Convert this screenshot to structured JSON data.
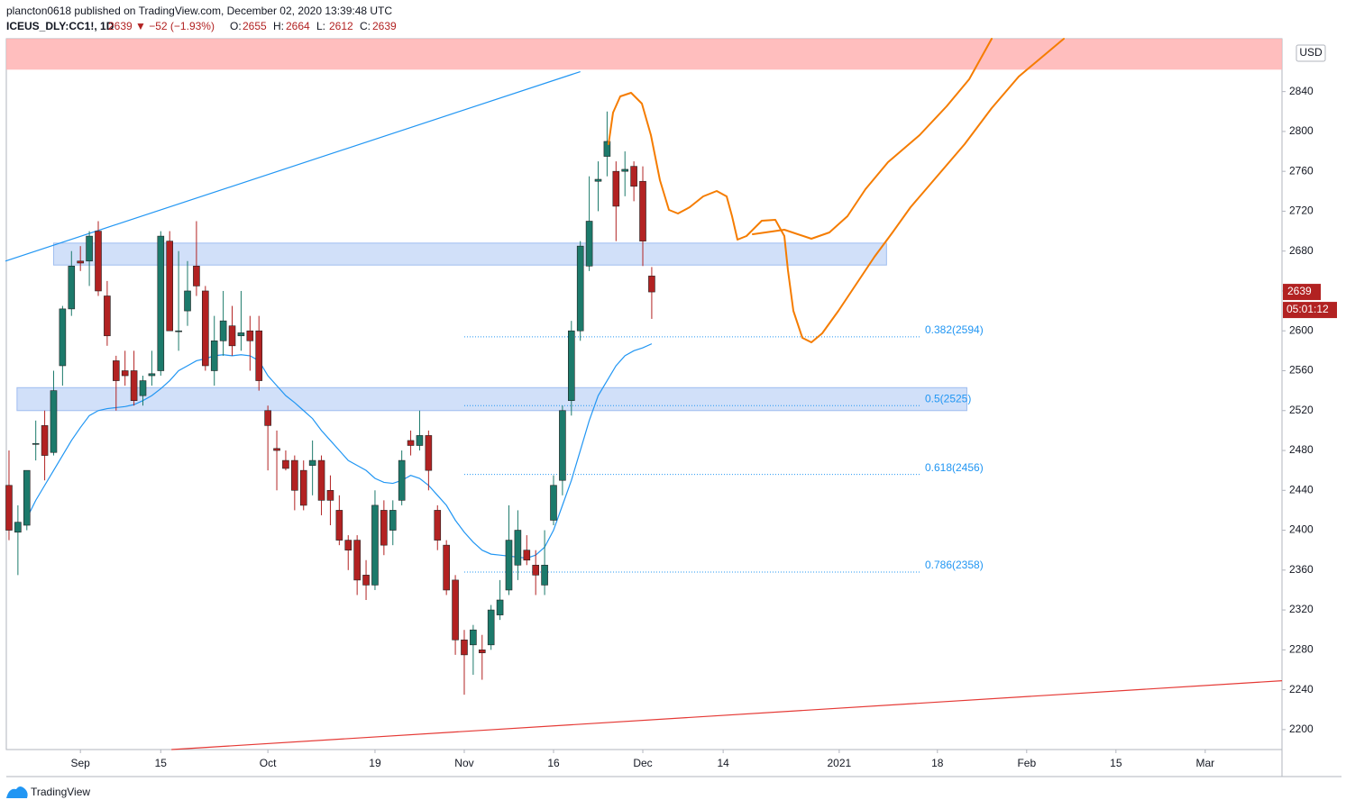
{
  "header": {
    "published": "plancton0618 published on TradingView.com, December 02, 2020 13:39:48 UTC",
    "symbol": "ICEUS_DLY:CC1!, 1D",
    "change": "2639 ▼ −52 (−1.93%)",
    "ohlc": [
      {
        "k": "O:",
        "v": "2655"
      },
      {
        "k": "H:",
        "v": "2664"
      },
      {
        "k": "L:",
        "v": "2612"
      },
      {
        "k": "C:",
        "v": "2639"
      }
    ]
  },
  "footer": {
    "brand": "TradingView"
  },
  "chart_data": {
    "type": "candlestick",
    "currency": "USD",
    "last_price": 2639,
    "last_label": "2639",
    "countdown": "05:01:12",
    "up_color": "#1c7a6b",
    "down_color": "#b22222",
    "x": [
      0,
      1,
      2,
      3,
      4,
      5,
      6,
      7,
      8,
      9,
      10,
      11,
      12,
      13,
      14,
      15,
      16,
      17,
      18,
      19,
      20,
      21,
      22,
      23,
      24,
      25,
      26,
      27,
      28,
      29,
      30,
      31,
      32,
      33,
      34,
      35,
      36,
      37,
      38,
      39,
      40,
      41,
      42,
      43,
      44,
      45,
      46,
      47,
      48,
      49,
      50,
      51,
      52,
      53,
      54,
      55,
      56,
      57,
      58,
      59,
      60,
      61,
      62,
      63,
      64,
      65,
      66,
      67,
      68,
      69,
      70,
      71,
      72
    ],
    "candles": {
      "open": [
        2445,
        2398,
        2405,
        2487,
        2505,
        2478,
        2565,
        2622,
        2670,
        2670,
        2700,
        2635,
        2570,
        2560,
        2560,
        2535,
        2555,
        2560,
        2690,
        2600,
        2620,
        2665,
        2640,
        2560,
        2590,
        2605,
        2595,
        2600,
        2600,
        2520,
        2482,
        2470,
        2470,
        2460,
        2465,
        2470,
        2440,
        2420,
        2390,
        2390,
        2355,
        2345,
        2420,
        2400,
        2430,
        2490,
        2485,
        2495,
        2420,
        2385,
        2350,
        2290,
        2285,
        2280,
        2285,
        2315,
        2340,
        2365,
        2380,
        2365,
        2345,
        2410,
        2450,
        2530,
        2600,
        2665,
        2750,
        2775,
        2760,
        2760,
        2765,
        2750,
        2655
      ],
      "high": [
        2480,
        2425,
        2435,
        2510,
        2520,
        2560,
        2625,
        2680,
        2685,
        2700,
        2710,
        2650,
        2575,
        2580,
        2580,
        2555,
        2580,
        2700,
        2700,
        2680,
        2670,
        2710,
        2645,
        2615,
        2640,
        2625,
        2640,
        2615,
        2615,
        2525,
        2500,
        2480,
        2475,
        2470,
        2490,
        2475,
        2455,
        2435,
        2395,
        2395,
        2370,
        2440,
        2430,
        2430,
        2480,
        2500,
        2520,
        2500,
        2425,
        2390,
        2355,
        2300,
        2305,
        2295,
        2325,
        2350,
        2425,
        2420,
        2395,
        2380,
        2400,
        2455,
        2525,
        2610,
        2690,
        2755,
        2770,
        2820,
        2770,
        2780,
        2770,
        2765,
        2664
      ],
      "low": [
        2390,
        2355,
        2400,
        2470,
        2450,
        2475,
        2545,
        2615,
        2660,
        2645,
        2635,
        2585,
        2520,
        2545,
        2525,
        2525,
        2545,
        2555,
        2600,
        2580,
        2605,
        2635,
        2560,
        2545,
        2575,
        2575,
        2580,
        2560,
        2540,
        2460,
        2440,
        2460,
        2420,
        2420,
        2435,
        2415,
        2405,
        2385,
        2360,
        2335,
        2330,
        2340,
        2375,
        2385,
        2425,
        2475,
        2480,
        2440,
        2380,
        2335,
        2275,
        2235,
        2255,
        2250,
        2280,
        2310,
        2335,
        2350,
        2365,
        2335,
        2335,
        2405,
        2435,
        2515,
        2590,
        2660,
        2720,
        2755,
        2690,
        2735,
        2730,
        2665,
        2612
      ],
      "close": [
        2400,
        2408,
        2460,
        2487,
        2475,
        2540,
        2622,
        2665,
        2668,
        2695,
        2640,
        2595,
        2550,
        2555,
        2530,
        2550,
        2557,
        2695,
        2600,
        2600,
        2640,
        2645,
        2565,
        2590,
        2610,
        2585,
        2598,
        2590,
        2550,
        2505,
        2480,
        2462,
        2440,
        2425,
        2470,
        2430,
        2430,
        2390,
        2380,
        2350,
        2345,
        2425,
        2385,
        2420,
        2470,
        2485,
        2495,
        2460,
        2390,
        2340,
        2290,
        2275,
        2300,
        2277,
        2320,
        2330,
        2390,
        2400,
        2370,
        2355,
        2365,
        2445,
        2520,
        2600,
        2685,
        2710,
        2752,
        2790,
        2725,
        2762,
        2745,
        2690,
        2639
      ]
    },
    "ma": {
      "color": "#2196f3",
      "values": [
        null,
        null,
        2412,
        2430,
        2445,
        2460,
        2475,
        2490,
        2503,
        2515,
        2520,
        2522,
        2523,
        2524,
        2526,
        2530,
        2535,
        2542,
        2550,
        2560,
        2565,
        2570,
        2572,
        2575,
        2576,
        2575,
        2576,
        2575,
        2570,
        2555,
        2545,
        2535,
        2528,
        2520,
        2512,
        2500,
        2490,
        2480,
        2470,
        2465,
        2460,
        2452,
        2448,
        2447,
        2450,
        2455,
        2452,
        2445,
        2435,
        2425,
        2410,
        2398,
        2388,
        2380,
        2376,
        2375,
        2374,
        2373,
        2372,
        2375,
        2383,
        2400,
        2425,
        2450,
        2480,
        2510,
        2535,
        2550,
        2565,
        2575,
        2580,
        2583,
        2587
      ]
    },
    "zones": [
      {
        "color": "#ffb3b3",
        "x": [
          -0.3,
          142.6
        ],
        "y": [
          2862,
          2893
        ]
      },
      {
        "color": "#c9daf8",
        "x": [
          5,
          98.3
        ],
        "y": [
          2666,
          2688
        ]
      },
      {
        "color": "#c9daf8",
        "x": [
          0.9,
          107.3
        ],
        "y": [
          2520,
          2543
        ]
      }
    ],
    "lines": [
      {
        "color": "#2196f3",
        "x": [
          -0.4,
          64
        ],
        "y": [
          2670,
          2860
        ]
      },
      {
        "color": "#e53935",
        "x": [
          18.2,
          142.6
        ],
        "y": [
          2180,
          2249
        ]
      }
    ],
    "fib": {
      "color": "#2196f3",
      "x": [
        51,
        102
      ],
      "levels": [
        {
          "value": 2594,
          "label": "0.382(2594)"
        },
        {
          "value": 2525,
          "label": "0.5(2525)"
        },
        {
          "value": 2456,
          "label": "0.618(2456)"
        },
        {
          "value": 2358,
          "label": "0.786(2358)"
        }
      ]
    },
    "xlim": [
      -0.3,
      142.6
    ],
    "ylim": [
      2180,
      2893
    ],
    "yticks": [
      2200,
      2240,
      2280,
      2320,
      2360,
      2400,
      2440,
      2480,
      2520,
      2560,
      2600,
      2640,
      2680,
      2720,
      2760,
      2800,
      2840
    ],
    "xticks": [
      {
        "value": 8,
        "label": "Sep"
      },
      {
        "value": 17,
        "label": "15"
      },
      {
        "value": 29,
        "label": "Oct"
      },
      {
        "value": 41,
        "label": "19"
      },
      {
        "value": 51,
        "label": "Nov"
      },
      {
        "value": 61,
        "label": "16"
      },
      {
        "value": 71,
        "label": "Dec"
      },
      {
        "value": 80,
        "label": "14"
      },
      {
        "value": 93,
        "label": "2021"
      },
      {
        "value": 104,
        "label": "18"
      },
      {
        "value": 114,
        "label": "Feb"
      },
      {
        "value": 124,
        "label": "15"
      },
      {
        "value": 134,
        "label": "Mar"
      }
    ]
  }
}
